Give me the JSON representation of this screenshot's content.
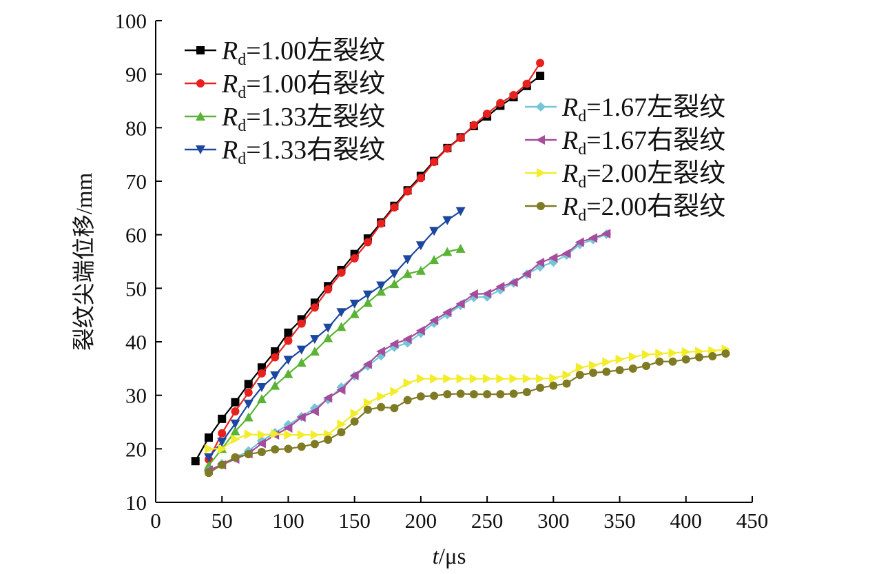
{
  "chart_data": {
    "type": "line",
    "xlabel": "t/μs",
    "xlabel_parts": {
      "var": "t",
      "unit": "/μs"
    },
    "ylabel": "裂纹尖端位移/mm",
    "xlim": [
      0,
      450
    ],
    "ylim": [
      10,
      100
    ],
    "xticks": [
      0,
      50,
      100,
      150,
      200,
      250,
      300,
      350,
      400,
      450
    ],
    "yticks": [
      10,
      20,
      30,
      40,
      50,
      60,
      70,
      80,
      90,
      100
    ],
    "grid": false,
    "legend": [
      {
        "position": "top-left",
        "entries": [
          0,
          1,
          2,
          3
        ]
      },
      {
        "position": "top-right",
        "entries": [
          4,
          5,
          6,
          7
        ]
      }
    ],
    "series": [
      {
        "name": "Rd=1.00左裂纹",
        "name_parts": {
          "var": "R",
          "sub": "d",
          "rest": "=1.00左裂纹"
        },
        "color": "#000000",
        "marker": "square",
        "x": [
          30,
          40,
          50,
          60,
          70,
          80,
          90,
          100,
          110,
          120,
          130,
          140,
          150,
          160,
          170,
          180,
          190,
          200,
          210,
          220,
          230,
          240,
          250,
          260,
          270,
          280,
          290
        ],
        "y": [
          17.7,
          22.1,
          25.6,
          28.7,
          32.1,
          35.2,
          38.2,
          41.7,
          44.2,
          47.3,
          50.4,
          53.4,
          56.4,
          59.3,
          62.3,
          65.4,
          68.3,
          71.0,
          73.8,
          76.2,
          78.2,
          80.3,
          82.1,
          84.1,
          85.7,
          87.8,
          89.7
        ]
      },
      {
        "name": "Rd=1.00右裂纹",
        "name_parts": {
          "var": "R",
          "sub": "d",
          "rest": "=1.00右裂纹"
        },
        "color": "#e8211f",
        "marker": "circle",
        "x": [
          40,
          50,
          60,
          70,
          80,
          90,
          100,
          110,
          120,
          130,
          140,
          150,
          160,
          170,
          180,
          190,
          200,
          210,
          220,
          230,
          240,
          250,
          260,
          270,
          280,
          290
        ],
        "y": [
          18.0,
          22.9,
          27.0,
          30.5,
          34.1,
          37.1,
          40.2,
          43.4,
          46.4,
          49.8,
          52.9,
          55.6,
          58.6,
          62.1,
          65.1,
          68.1,
          70.6,
          73.6,
          76.1,
          78.1,
          80.5,
          82.6,
          84.6,
          86.1,
          88.2,
          92.1
        ]
      },
      {
        "name": "Rd=1.33左裂纹",
        "name_parts": {
          "var": "R",
          "sub": "d",
          "rest": "=1.33左裂纹"
        },
        "color": "#5ab334",
        "marker": "triangle-up",
        "x": [
          40,
          50,
          60,
          70,
          80,
          90,
          100,
          110,
          120,
          130,
          140,
          150,
          160,
          170,
          180,
          190,
          200,
          210,
          220,
          230
        ],
        "y": [
          16.9,
          20.0,
          23.3,
          25.9,
          29.3,
          31.8,
          34.0,
          36.1,
          38.2,
          40.7,
          42.8,
          45.2,
          47.3,
          49.4,
          50.8,
          52.7,
          53.3,
          55.3,
          56.8,
          57.4
        ]
      },
      {
        "name": "Rd=1.33右裂纹",
        "name_parts": {
          "var": "R",
          "sub": "d",
          "rest": "=1.33右裂纹"
        },
        "color": "#1c47a0",
        "marker": "triangle-down",
        "x": [
          40,
          50,
          60,
          70,
          80,
          90,
          100,
          110,
          120,
          130,
          140,
          150,
          160,
          170,
          180,
          190,
          200,
          210,
          220,
          230
        ],
        "y": [
          18.4,
          21.3,
          24.7,
          28.4,
          31.5,
          33.7,
          36.6,
          38.5,
          40.5,
          42.6,
          45.5,
          47.1,
          48.8,
          50.5,
          52.7,
          55.4,
          58.0,
          60.7,
          62.7,
          64.4
        ]
      },
      {
        "name": "Rd=1.67左裂纹",
        "name_parts": {
          "var": "R",
          "sub": "d",
          "rest": "=1.67左裂纹"
        },
        "color": "#73c6d6",
        "marker": "diamond",
        "x": [
          40,
          50,
          60,
          70,
          80,
          90,
          100,
          110,
          120,
          130,
          140,
          150,
          160,
          170,
          180,
          190,
          200,
          210,
          220,
          230,
          240,
          250,
          260,
          270,
          280,
          290,
          300,
          310,
          320,
          330,
          340
        ],
        "y": [
          15.8,
          17.2,
          18.3,
          19.6,
          21.5,
          23.0,
          24.5,
          26.0,
          27.6,
          29.2,
          31.5,
          33.6,
          35.5,
          37.4,
          39.0,
          39.8,
          41.6,
          43.5,
          45.1,
          46.8,
          48.3,
          48.4,
          49.7,
          51.0,
          52.6,
          54.0,
          54.9,
          56.2,
          58.2,
          59.1,
          60.1
        ]
      },
      {
        "name": "Rd=1.67右裂纹",
        "name_parts": {
          "var": "R",
          "sub": "d",
          "rest": "=1.67右裂纹"
        },
        "color": "#a54c9c",
        "marker": "triangle-left",
        "x": [
          40,
          50,
          60,
          70,
          80,
          90,
          100,
          110,
          120,
          130,
          140,
          150,
          160,
          170,
          180,
          190,
          200,
          210,
          220,
          230,
          240,
          250,
          260,
          270,
          280,
          290,
          300,
          310,
          320,
          330,
          340
        ],
        "y": [
          16.0,
          17.0,
          18.1,
          19.1,
          21.0,
          22.6,
          23.9,
          25.9,
          27.0,
          29.5,
          31.0,
          33.7,
          35.8,
          38.2,
          39.6,
          40.5,
          42.1,
          44.0,
          45.5,
          47.1,
          48.9,
          49.0,
          50.3,
          51.1,
          52.7,
          54.8,
          55.7,
          56.5,
          58.6,
          59.4,
          60.2
        ]
      },
      {
        "name": "Rd=2.00左裂纹",
        "name_parts": {
          "var": "R",
          "sub": "d",
          "rest": "=2.00左裂纹"
        },
        "color": "#f3ec2a",
        "marker": "triangle-right",
        "x": [
          40,
          50,
          60,
          70,
          80,
          90,
          100,
          110,
          120,
          130,
          140,
          150,
          160,
          170,
          180,
          190,
          200,
          210,
          220,
          230,
          240,
          250,
          260,
          270,
          280,
          290,
          300,
          310,
          320,
          330,
          340,
          350,
          360,
          370,
          380,
          390,
          400,
          410,
          420,
          430
        ],
        "y": [
          20.0,
          20.0,
          21.8,
          22.7,
          22.6,
          22.8,
          22.6,
          22.6,
          22.6,
          22.7,
          24.6,
          26.6,
          28.6,
          29.8,
          30.7,
          32.3,
          33.1,
          33.1,
          33.1,
          33.1,
          33.1,
          33.1,
          33.1,
          33.1,
          33.1,
          33.1,
          33.2,
          33.8,
          35.2,
          35.6,
          36.2,
          36.7,
          37.2,
          37.6,
          37.8,
          37.9,
          38.1,
          38.2,
          38.3,
          38.6
        ]
      },
      {
        "name": "Rd=2.00右裂纹",
        "name_parts": {
          "var": "R",
          "sub": "d",
          "rest": "=2.00右裂纹"
        },
        "color": "#7f7a24",
        "marker": "circle",
        "x": [
          40,
          50,
          60,
          70,
          80,
          90,
          100,
          110,
          120,
          130,
          140,
          150,
          160,
          170,
          180,
          190,
          200,
          210,
          220,
          230,
          240,
          250,
          260,
          270,
          280,
          290,
          300,
          310,
          320,
          330,
          340,
          350,
          360,
          370,
          380,
          390,
          400,
          410,
          420,
          430
        ],
        "y": [
          15.5,
          17.0,
          18.4,
          19.0,
          19.4,
          19.9,
          20.0,
          20.4,
          20.9,
          21.7,
          23.1,
          25.1,
          27.3,
          27.8,
          27.6,
          29.1,
          29.8,
          29.9,
          30.2,
          30.3,
          30.2,
          30.2,
          30.2,
          30.3,
          30.6,
          31.4,
          31.8,
          32.2,
          33.8,
          34.2,
          34.4,
          34.7,
          35.0,
          35.5,
          36.3,
          36.3,
          36.7,
          37.1,
          37.3,
          37.8
        ]
      }
    ]
  }
}
